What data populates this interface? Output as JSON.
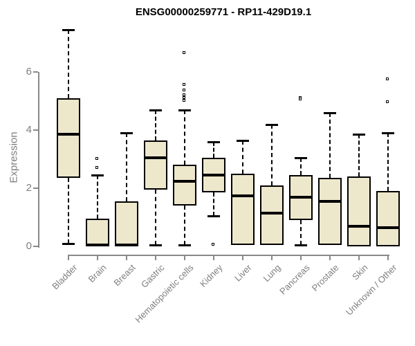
{
  "title": "ENSG00000259771 - RP11-429D19.1",
  "chart_data": {
    "type": "boxplot",
    "title": "ENSG00000259771 - RP11-429D19.1",
    "xlabel": "",
    "ylabel": "Expression",
    "yticks": [
      0,
      2,
      4,
      6
    ],
    "ylim": [
      0,
      7.6
    ],
    "grid": false,
    "legend": "none",
    "categories": [
      "Bladder",
      "Brain",
      "Breast",
      "Gastric",
      "Hematopoietic cells",
      "Kidney",
      "Liver",
      "Lung",
      "Pancreas",
      "Prostate",
      "Skin",
      "Unknown / Other"
    ],
    "series": [
      {
        "name": "Bladder",
        "whisker_low": 0.1,
        "q1": 2.35,
        "median": 3.85,
        "q3": 5.1,
        "whisker_high": 7.45,
        "outliers": []
      },
      {
        "name": "Brain",
        "whisker_low": 0,
        "q1": 0,
        "median": 0.05,
        "q3": 0.95,
        "whisker_high": 2.45,
        "outliers": [
          3.0,
          2.7
        ]
      },
      {
        "name": "Breast",
        "whisker_low": 0,
        "q1": 0,
        "median": 0.05,
        "q3": 1.55,
        "whisker_high": 3.9,
        "outliers": []
      },
      {
        "name": "Gastric",
        "whisker_low": 0.05,
        "q1": 1.95,
        "median": 3.05,
        "q3": 3.65,
        "whisker_high": 4.7,
        "outliers": []
      },
      {
        "name": "Hematopoietic cells",
        "whisker_low": 0.05,
        "q1": 1.4,
        "median": 2.25,
        "q3": 2.8,
        "whisker_high": 4.7,
        "outliers": [
          6.65,
          5.55,
          5.35,
          5.2,
          5.1,
          5.0
        ]
      },
      {
        "name": "Kidney",
        "whisker_low": 1.05,
        "q1": 1.85,
        "median": 2.45,
        "q3": 3.05,
        "whisker_high": 3.6,
        "outliers": [
          0.05
        ]
      },
      {
        "name": "Liver",
        "whisker_low": 0.05,
        "q1": 0.05,
        "median": 1.75,
        "q3": 2.5,
        "whisker_high": 3.65,
        "outliers": []
      },
      {
        "name": "Lung",
        "whisker_low": 0.05,
        "q1": 0.05,
        "median": 1.15,
        "q3": 2.1,
        "whisker_high": 4.2,
        "outliers": []
      },
      {
        "name": "Pancreas",
        "whisker_low": 0.05,
        "q1": 0.9,
        "median": 1.7,
        "q3": 2.45,
        "whisker_high": 3.05,
        "outliers": [
          5.1,
          5.05
        ]
      },
      {
        "name": "Prostate",
        "whisker_low": 0.05,
        "q1": 0.05,
        "median": 1.55,
        "q3": 2.35,
        "whisker_high": 4.6,
        "outliers": []
      },
      {
        "name": "Skin",
        "whisker_low": 0,
        "q1": 0,
        "median": 0.7,
        "q3": 2.4,
        "whisker_high": 3.85,
        "outliers": []
      },
      {
        "name": "Unknown / Other",
        "whisker_low": 0,
        "q1": 0,
        "median": 0.65,
        "q3": 1.9,
        "whisker_high": 3.9,
        "outliers": [
          5.75,
          4.95
        ]
      }
    ],
    "colors": {
      "box_fill": "#ede7cc",
      "box_border": "#000000",
      "median": "#000000",
      "axis": "#888888",
      "tick_label": "#7f7f7f",
      "title": "#000000",
      "background": "#ffffff"
    }
  }
}
